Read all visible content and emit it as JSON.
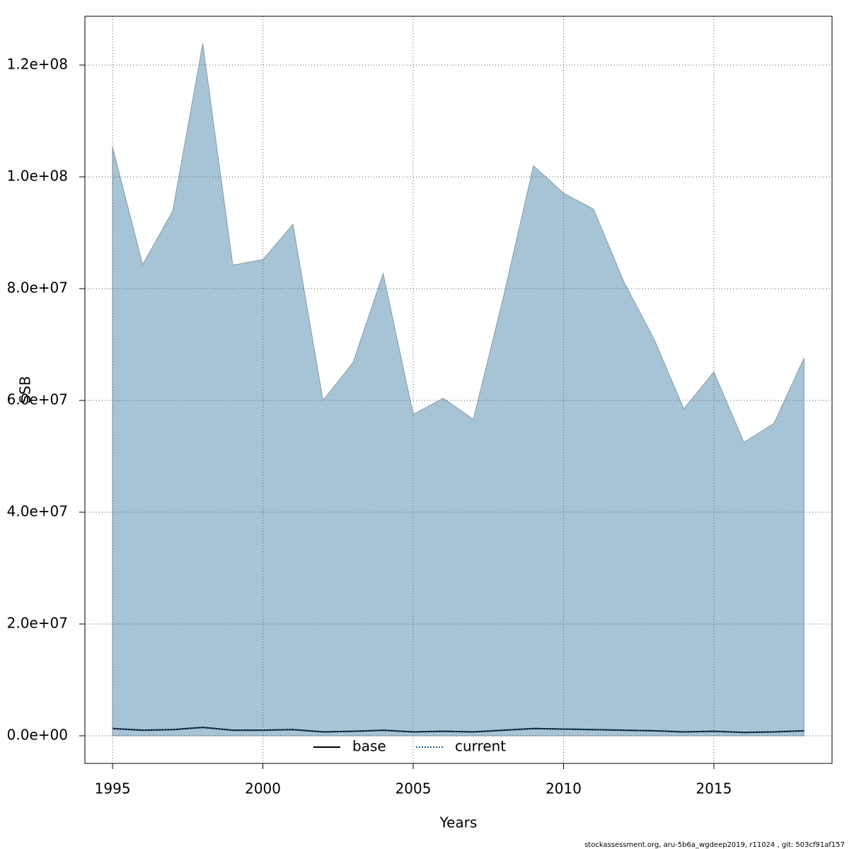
{
  "chart_data": {
    "type": "line",
    "x": [
      1995,
      1996,
      1997,
      1998,
      1999,
      2000,
      2001,
      2002,
      2003,
      2004,
      2005,
      2006,
      2007,
      2008,
      2009,
      2010,
      2011,
      2012,
      2013,
      2014,
      2015,
      2016,
      2017,
      2018
    ],
    "band": {
      "color": "#a6c4d5",
      "upper": [
        105300000,
        84300000,
        93900000,
        123800000,
        84200000,
        85200000,
        91500000,
        60000000,
        66800000,
        82700000,
        57500000,
        60400000,
        56600000,
        78500000,
        102000000,
        97100000,
        94200000,
        81300000,
        71100000,
        58500000,
        65100000,
        52500000,
        55900000,
        67600000
      ]
    },
    "series": [
      {
        "name": "base",
        "color": "#000000",
        "values": [
          1300000,
          1000000,
          1100000,
          1500000,
          1000000,
          1000000,
          1100000,
          700000,
          800000,
          1000000,
          700000,
          800000,
          700000,
          1000000,
          1300000,
          1200000,
          1100000,
          1000000,
          900000,
          700000,
          800000,
          600000,
          700000,
          900000
        ]
      },
      {
        "name": "current",
        "color": "#1f5a8c",
        "values": [
          1300000,
          1000000,
          1100000,
          1500000,
          1000000,
          1000000,
          1100000,
          700000,
          800000,
          1000000,
          700000,
          800000,
          700000,
          1000000,
          1300000,
          1200000,
          1100000,
          1000000,
          900000,
          700000,
          800000,
          600000,
          700000,
          900000
        ]
      }
    ],
    "xlabel": "Years",
    "ylabel": "SSB",
    "xlim": [
      1994.08,
      2018.93
    ],
    "xticks": [
      1995,
      2000,
      2005,
      2010,
      2015
    ],
    "ylim": [
      -4940000,
      128730000
    ],
    "yticks": [
      {
        "value": 0,
        "label": "0.0e+00"
      },
      {
        "value": 20000000,
        "label": "2.0e+07"
      },
      {
        "value": 40000000,
        "label": "4.0e+07"
      },
      {
        "value": 60000000,
        "label": "6.0e+07"
      },
      {
        "value": 80000000,
        "label": "8.0e+07"
      },
      {
        "value": 100000000,
        "label": "1.0e+08"
      },
      {
        "value": 120000000,
        "label": "1.2e+08"
      }
    ],
    "grid": true,
    "legend": "bottom",
    "footnote": "stockassessment.org, aru-5b6a_wgdeep2019, r11024 , git: 503cf91af157"
  }
}
